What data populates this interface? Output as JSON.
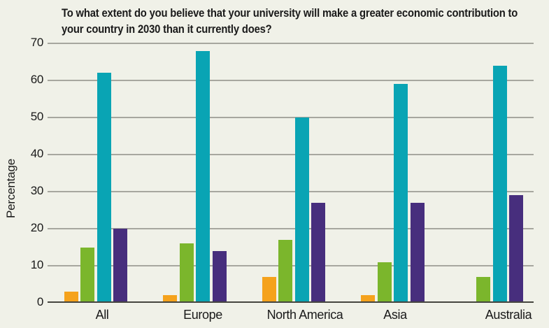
{
  "chart_data": {
    "type": "bar",
    "title": "To what extent do you believe that your university will make a greater economic contribution to your country in 2030 than it currently does?",
    "ylabel": "Percentage",
    "xlabel": "",
    "categories": [
      "All",
      "Europe",
      "North America",
      "Asia",
      "Australia"
    ],
    "series": [
      {
        "name": "orange",
        "color": "#F5A21C",
        "values": [
          3,
          2,
          7,
          2,
          0
        ]
      },
      {
        "name": "green",
        "color": "#7BB62C",
        "values": [
          15,
          16,
          17,
          11,
          7
        ]
      },
      {
        "name": "teal",
        "color": "#09A4B4",
        "values": [
          62,
          68,
          50,
          59,
          64
        ]
      },
      {
        "name": "purple",
        "color": "#472E7D",
        "values": [
          20,
          14,
          27,
          27,
          29
        ]
      }
    ],
    "ylim": [
      0,
      70
    ],
    "ytick_step": 10,
    "grid": true,
    "legend": false
  },
  "colors": {
    "background": "#F0F1E8",
    "gridline": "#A7A79F",
    "axis": "#45453F",
    "text": "#1A1A1A"
  }
}
